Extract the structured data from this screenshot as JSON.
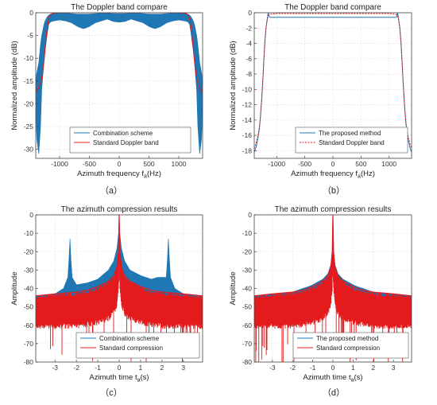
{
  "chart_data": [
    {
      "id": "a",
      "type": "line",
      "title": "The Doppler band compare",
      "xlabel_main": "Azimuth frequency f",
      "xlabel_sub": "a",
      "xlabel_unit": "(Hz)",
      "ylabel": "Normalized amplitude (dB)",
      "panel_label": "（a）",
      "xlim": [
        -1400,
        1400
      ],
      "ylim": [
        -32,
        0
      ],
      "xticks": [
        -1000,
        -500,
        0,
        500,
        1000
      ],
      "yticks": [
        0,
        -5,
        -10,
        -15,
        -20,
        -25,
        -30
      ],
      "legend_position": "bottom-right",
      "series": [
        {
          "name": "Combination scheme",
          "color": "#1f77b4",
          "style": "band",
          "x": [
            -1400,
            -1380,
            -1350,
            -1320,
            -1300,
            -1270,
            -1250,
            -1220,
            -1200,
            -1180,
            -1150,
            -1100,
            -1000,
            -900,
            -800,
            -700,
            -650,
            -600,
            -550,
            -500,
            -400,
            -300,
            -200,
            -100,
            0,
            100,
            200,
            300,
            400,
            500,
            550,
            600,
            650,
            700,
            800,
            900,
            1000,
            1100,
            1150,
            1180,
            1200,
            1220,
            1250,
            1270,
            1300,
            1320,
            1350,
            1380,
            1400
          ],
          "upper": [
            -15,
            -13,
            -11,
            -7,
            -5,
            -3,
            -2,
            -1.2,
            -0.8,
            -0.5,
            -0.3,
            -0.2,
            -0.1,
            -0.1,
            -0.2,
            -0.3,
            -0.3,
            -0.3,
            -0.3,
            -0.3,
            -0.2,
            -0.1,
            -0.1,
            -0.2,
            -0.2,
            -0.2,
            -0.1,
            -0.1,
            -0.2,
            -0.3,
            -0.3,
            -0.3,
            -0.3,
            -0.3,
            -0.2,
            -0.1,
            -0.1,
            -0.2,
            -0.3,
            -0.5,
            -0.8,
            -1.2,
            -2,
            -3,
            -5,
            -7,
            -11,
            -13,
            -15
          ],
          "lower": [
            -22,
            -28,
            -31,
            -25,
            -17,
            -12,
            -9,
            -6,
            -4,
            -2.5,
            -2,
            -1.8,
            -1.6,
            -1.8,
            -2.2,
            -3,
            -3.3,
            -3.5,
            -3.3,
            -3,
            -2.2,
            -1.8,
            -1.4,
            -1.9,
            -2.1,
            -1.9,
            -1.4,
            -1.8,
            -2.2,
            -3,
            -3.3,
            -3.5,
            -3.3,
            -3,
            -2.2,
            -1.8,
            -1.6,
            -1.8,
            -2,
            -2.5,
            -4,
            -6,
            -9,
            -12,
            -17,
            -25,
            -31,
            -28,
            -22
          ]
        },
        {
          "name": "Standard Doppler band",
          "color": "#e41a1c",
          "style": "line",
          "x": [
            -1400,
            -1370,
            -1340,
            -1310,
            -1290,
            -1270,
            -1250,
            -1230,
            -1210,
            -1190,
            -1170,
            -1150,
            -1120,
            -1000,
            -500,
            0,
            500,
            1000,
            1120,
            1150,
            1170,
            1190,
            1210,
            1230,
            1250,
            1270,
            1290,
            1310,
            1340,
            1370,
            1400
          ],
          "y": [
            -17.5,
            -17,
            -16,
            -15,
            -13.5,
            -11.5,
            -9,
            -6,
            -3.5,
            -1.8,
            -0.9,
            -0.4,
            -0.1,
            0,
            0,
            0,
            0,
            0,
            -0.1,
            -0.4,
            -0.9,
            -1.8,
            -3.5,
            -6,
            -9,
            -11.5,
            -13.5,
            -15,
            -16,
            -17,
            -17.5
          ]
        }
      ]
    },
    {
      "id": "b",
      "type": "line",
      "title": "The Doppler band compare",
      "xlabel_main": "Azimuth frequency f",
      "xlabel_sub": "a",
      "xlabel_unit": "(Hz)",
      "ylabel": "Normalized amplitude (dB)",
      "panel_label": "（b）",
      "xlim": [
        -1400,
        1400
      ],
      "ylim": [
        -19,
        0
      ],
      "xticks": [
        -1000,
        -500,
        0,
        500,
        1000
      ],
      "yticks": [
        0,
        -2,
        -4,
        -6,
        -8,
        -10,
        -12,
        -14,
        -16,
        -18
      ],
      "legend_position": "bottom-right",
      "series": [
        {
          "name": "The proposed method",
          "color": "#1f77b4",
          "style": "line",
          "x": [
            -1400,
            -1370,
            -1340,
            -1310,
            -1290,
            -1270,
            -1250,
            -1230,
            -1210,
            -1190,
            -1170,
            -1160,
            -1150,
            -1140,
            -1120,
            -1000,
            -500,
            0,
            500,
            1000,
            1120,
            1140,
            1150,
            1160,
            1170,
            1190,
            1210,
            1230,
            1250,
            1270,
            1290,
            1310,
            1340,
            1370,
            1400
          ],
          "y": [
            -18.2,
            -17.6,
            -16.6,
            -15.2,
            -13.6,
            -11.6,
            -9.2,
            -6.4,
            -3.8,
            -1.9,
            -0.9,
            -0.3,
            0,
            -0.4,
            -0.6,
            -0.6,
            -0.6,
            -0.6,
            -0.6,
            -0.6,
            -0.6,
            -0.4,
            0,
            -0.3,
            -0.9,
            -1.9,
            -3.8,
            -6.4,
            -9.2,
            -11.6,
            -13.6,
            -15.2,
            -16.6,
            -17.6,
            -18.2
          ]
        },
        {
          "name": "Standard Doppler band",
          "color": "#e41a1c",
          "style": "dashed",
          "x": [
            -1400,
            -1370,
            -1340,
            -1310,
            -1290,
            -1270,
            -1250,
            -1230,
            -1210,
            -1190,
            -1170,
            -1150,
            -1120,
            -1000,
            -500,
            0,
            500,
            1000,
            1120,
            1150,
            1170,
            1190,
            1210,
            1230,
            1250,
            1270,
            1290,
            1310,
            1340,
            1370,
            1400
          ],
          "y": [
            -17.7,
            -17.1,
            -16.2,
            -15,
            -13.5,
            -11.5,
            -9,
            -6.2,
            -3.6,
            -1.8,
            -0.9,
            -0.4,
            -0.2,
            -0.1,
            -0.1,
            -0.1,
            -0.1,
            -0.1,
            -0.2,
            -0.4,
            -0.9,
            -1.8,
            -3.6,
            -6.2,
            -9,
            -11.5,
            -13.5,
            -15,
            -16.2,
            -17.1,
            -17.7
          ]
        }
      ]
    },
    {
      "id": "c",
      "type": "line",
      "title": "The azimuth compression results",
      "xlabel_main": "Azimuth time t",
      "xlabel_sub": "a",
      "xlabel_unit": "(s)",
      "ylabel": "Amplitude",
      "panel_label": "（c）",
      "xlim": [
        -3.9,
        3.9
      ],
      "ylim": [
        -80,
        0
      ],
      "xticks": [
        -3,
        -2,
        -1,
        0,
        1,
        2,
        3
      ],
      "yticks": [
        0,
        -10,
        -20,
        -30,
        -40,
        -50,
        -60,
        -70,
        -80
      ],
      "legend_position": "bottom-right",
      "series": [
        {
          "name": "Combination scheme",
          "color": "#1f77b4",
          "style": "band",
          "x": [
            -3.9,
            -3.0,
            -2.6,
            -2.4,
            -2.35,
            -2.3,
            -2.25,
            -2.2,
            -2.0,
            -1.5,
            -1.0,
            -0.5,
            -0.25,
            -0.1,
            -0.03,
            0,
            0.03,
            0.1,
            0.25,
            0.5,
            1.0,
            1.5,
            1.8,
            2.0,
            2.2,
            2.25,
            2.3,
            2.35,
            2.4,
            2.6,
            3.0,
            3.9
          ],
          "upper": [
            -44,
            -43,
            -40,
            -34,
            -25,
            -13,
            -25,
            -34,
            -38,
            -37,
            -35,
            -30,
            -25,
            -18,
            -10,
            0,
            -10,
            -18,
            -25,
            -30,
            -33,
            -35,
            -34,
            -34,
            -34,
            -25,
            -13,
            -25,
            -34,
            -40,
            -43,
            -44
          ],
          "lower": [
            -50,
            -50,
            -50,
            -48,
            -46,
            -45,
            -46,
            -48,
            -47,
            -45,
            -44,
            -41,
            -37,
            -33,
            -28,
            -25,
            -28,
            -33,
            -37,
            -41,
            -44,
            -45,
            -48,
            -50,
            -47,
            -46,
            -45,
            -46,
            -48,
            -50,
            -50,
            -50
          ]
        },
        {
          "name": "Standard compression",
          "color": "#e41a1c",
          "style": "noise",
          "x": [
            -3.9,
            -3.0,
            -2.0,
            -1.5,
            -1.0,
            -0.5,
            -0.25,
            -0.1,
            -0.03,
            0,
            0.03,
            0.1,
            0.25,
            0.5,
            1.0,
            1.5,
            2.0,
            3.0,
            3.9
          ],
          "upper": [
            -44,
            -43,
            -42,
            -41,
            -39,
            -36,
            -33,
            -28,
            -20,
            0,
            -20,
            -28,
            -33,
            -36,
            -39,
            -41,
            -42,
            -43,
            -44
          ],
          "lower": [
            -62,
            -62,
            -62,
            -61,
            -60,
            -58,
            -55,
            -50,
            -42,
            -30,
            -42,
            -50,
            -55,
            -58,
            -60,
            -61,
            -62,
            -62,
            -62
          ]
        }
      ]
    },
    {
      "id": "d",
      "type": "line",
      "title": "The azimuth compression results",
      "xlabel_main": "Azimuth time t",
      "xlabel_sub": "a",
      "xlabel_unit": "(s)",
      "ylabel": "Amplitude",
      "panel_label": "（d）",
      "xlim": [
        -3.9,
        3.9
      ],
      "ylim": [
        -80,
        0
      ],
      "xticks": [
        -3,
        -2,
        -1,
        0,
        1,
        2,
        3
      ],
      "yticks": [
        0,
        -10,
        -20,
        -30,
        -40,
        -50,
        -60,
        -70,
        -80
      ],
      "legend_position": "bottom-right",
      "series": [
        {
          "name": "The proposed method",
          "color": "#1f77b4",
          "style": "band",
          "x": [
            -3.9,
            -3.0,
            -2.0,
            -1.5,
            -1.2,
            -1.0,
            -0.5,
            -0.25,
            -0.1,
            -0.03,
            0,
            0.03,
            0.1,
            0.25,
            0.5,
            1.0,
            1.2,
            1.5,
            2.0,
            3.0,
            3.9
          ],
          "upper": [
            -44,
            -43,
            -42,
            -40,
            -39,
            -38,
            -35,
            -32,
            -27,
            -19,
            0,
            -19,
            -27,
            -32,
            -35,
            -38,
            -39,
            -40,
            -42,
            -43,
            -44
          ],
          "lower": [
            -50,
            -50,
            -49,
            -48,
            -47,
            -46,
            -44,
            -42,
            -38,
            -32,
            -28,
            -32,
            -38,
            -42,
            -44,
            -46,
            -47,
            -48,
            -49,
            -50,
            -50
          ]
        },
        {
          "name": "Standard compression",
          "color": "#e41a1c",
          "style": "noise",
          "x": [
            -3.9,
            -3.0,
            -2.0,
            -1.5,
            -1.0,
            -0.5,
            -0.25,
            -0.1,
            -0.03,
            0,
            0.03,
            0.1,
            0.25,
            0.5,
            1.0,
            1.5,
            2.0,
            3.0,
            3.9
          ],
          "upper": [
            -44,
            -43,
            -42,
            -41,
            -39,
            -36,
            -33,
            -28,
            -20,
            0,
            -20,
            -28,
            -33,
            -36,
            -39,
            -41,
            -42,
            -43,
            -44
          ],
          "lower": [
            -62,
            -62,
            -62,
            -61,
            -60,
            -58,
            -55,
            -50,
            -42,
            -30,
            -42,
            -50,
            -55,
            -58,
            -60,
            -61,
            -62,
            -62,
            -62
          ]
        }
      ]
    }
  ]
}
